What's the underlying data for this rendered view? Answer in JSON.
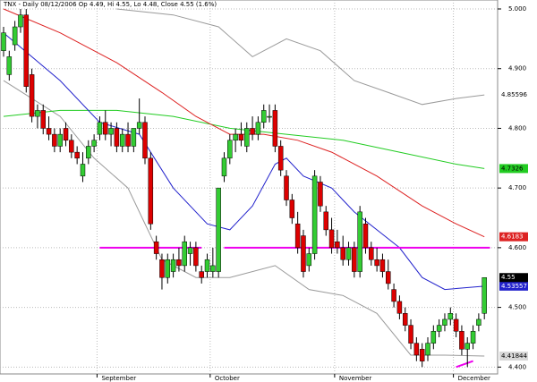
{
  "chart_data": {
    "type": "candlestick",
    "title": "TNX - Daily 08/12/2006 Op 4.49, Hi 4.55, Lo 4.48, Close 4.55 (1.6%)",
    "categories": [
      null,
      null,
      null,
      null,
      null,
      null,
      null,
      null,
      null,
      null,
      null,
      null,
      null,
      null,
      null,
      null,
      null,
      "September",
      null,
      null,
      null,
      null,
      null,
      null,
      null,
      null,
      null,
      null,
      null,
      null,
      null,
      null,
      null,
      null,
      null,
      null,
      null,
      "October",
      null,
      null,
      null,
      null,
      null,
      null,
      null,
      null,
      null,
      null,
      null,
      null,
      null,
      null,
      null,
      null,
      null,
      null,
      null,
      null,
      null,
      "November",
      null,
      null,
      null,
      null,
      null,
      null,
      null,
      null,
      null,
      null,
      null,
      null,
      null,
      null,
      null,
      null,
      null,
      null,
      null,
      null,
      "December",
      null,
      null,
      null,
      null,
      null
    ],
    "open": [
      4.93,
      4.89,
      4.94,
      4.97,
      4.99,
      4.89,
      4.82,
      4.83,
      4.8,
      4.79,
      4.77,
      4.8,
      4.78,
      4.76,
      4.72,
      4.75,
      4.77,
      4.79,
      4.81,
      4.79,
      4.8,
      4.77,
      4.79,
      4.77,
      4.8,
      4.81,
      4.75,
      4.61,
      4.58,
      4.55,
      4.56,
      4.58,
      4.57,
      4.59,
      4.6,
      4.56,
      4.56,
      4.56,
      4.56,
      4.72,
      4.75,
      4.78,
      4.79,
      4.77,
      4.8,
      4.79,
      4.81,
      4.82,
      4.83,
      4.77,
      4.72,
      4.68,
      4.64,
      4.62,
      4.57,
      4.59,
      4.71,
      4.66,
      4.63,
      4.61,
      4.6,
      4.58,
      4.6,
      4.56,
      4.64,
      4.6,
      4.58,
      4.58,
      4.56,
      4.53,
      4.51,
      4.49,
      4.47,
      4.44,
      4.43,
      4.42,
      4.44,
      4.46,
      4.47,
      4.48,
      4.48,
      4.46,
      4.43,
      4.44,
      4.47,
      4.49
    ],
    "high": [
      4.97,
      4.93,
      4.98,
      5.0,
      5.0,
      4.9,
      4.84,
      4.84,
      4.82,
      4.8,
      4.8,
      4.81,
      4.79,
      4.77,
      4.76,
      4.78,
      4.79,
      4.82,
      4.83,
      4.81,
      4.81,
      4.8,
      4.81,
      4.8,
      4.85,
      4.82,
      4.76,
      4.62,
      4.59,
      4.59,
      4.59,
      4.6,
      4.62,
      4.61,
      4.61,
      4.57,
      4.59,
      4.6,
      4.7,
      4.76,
      4.79,
      4.8,
      4.81,
      4.81,
      4.82,
      4.82,
      4.84,
      4.84,
      4.84,
      4.78,
      4.73,
      4.69,
      4.66,
      4.63,
      4.6,
      4.73,
      4.72,
      4.67,
      4.65,
      4.63,
      4.62,
      4.61,
      4.61,
      4.67,
      4.65,
      4.61,
      4.6,
      4.59,
      4.58,
      4.54,
      4.52,
      4.5,
      4.48,
      4.45,
      4.44,
      4.45,
      4.47,
      4.48,
      4.49,
      4.5,
      4.49,
      4.47,
      4.45,
      4.47,
      4.49,
      4.55
    ],
    "low": [
      4.92,
      4.88,
      4.93,
      4.96,
      4.86,
      4.81,
      4.8,
      4.79,
      4.78,
      4.76,
      4.76,
      4.77,
      4.75,
      4.74,
      4.71,
      4.74,
      4.76,
      4.78,
      4.78,
      4.77,
      4.76,
      4.76,
      4.76,
      4.76,
      4.79,
      4.74,
      4.63,
      4.58,
      4.53,
      4.54,
      4.55,
      4.56,
      4.56,
      4.57,
      4.56,
      4.54,
      4.55,
      4.55,
      4.55,
      4.71,
      4.74,
      4.76,
      4.77,
      4.76,
      4.78,
      4.78,
      4.8,
      4.81,
      4.76,
      4.72,
      4.67,
      4.64,
      4.59,
      4.55,
      4.56,
      4.58,
      4.66,
      4.62,
      4.59,
      4.59,
      4.57,
      4.57,
      4.55,
      4.55,
      4.59,
      4.57,
      4.56,
      4.55,
      4.53,
      4.5,
      4.48,
      4.46,
      4.43,
      4.41,
      4.4,
      4.41,
      4.43,
      4.45,
      4.46,
      4.47,
      4.45,
      4.42,
      4.4,
      4.43,
      4.46,
      4.48
    ],
    "close": [
      4.96,
      4.92,
      4.97,
      4.99,
      4.87,
      4.82,
      4.83,
      4.8,
      4.79,
      4.77,
      4.79,
      4.78,
      4.76,
      4.75,
      4.74,
      4.77,
      4.78,
      4.81,
      4.79,
      4.8,
      4.77,
      4.79,
      4.77,
      4.8,
      4.81,
      4.75,
      4.64,
      4.59,
      4.55,
      4.58,
      4.58,
      4.57,
      4.61,
      4.6,
      4.57,
      4.55,
      4.58,
      4.57,
      4.7,
      4.75,
      4.78,
      4.79,
      4.78,
      4.8,
      4.79,
      4.81,
      4.83,
      4.82,
      4.77,
      4.73,
      4.68,
      4.65,
      4.6,
      4.56,
      4.59,
      4.72,
      4.67,
      4.63,
      4.6,
      4.6,
      4.58,
      4.6,
      4.56,
      4.66,
      4.6,
      4.58,
      4.57,
      4.56,
      4.54,
      4.51,
      4.49,
      4.47,
      4.44,
      4.42,
      4.41,
      4.44,
      4.46,
      4.47,
      4.48,
      4.49,
      4.46,
      4.43,
      4.44,
      4.46,
      4.48,
      4.55
    ],
    "up_color": "#33cc33",
    "down_color": "#dd0000",
    "close_tag_color": "#000000",
    "overlays": [
      {
        "color": "#9a9a9a",
        "tag": true,
        "tag_fill": "#ffffff",
        "tag_text": "#000000",
        "x": [
          20,
          30,
          38,
          44,
          50,
          56,
          62,
          68,
          74,
          80,
          85
        ],
        "values": [
          5.0,
          4.99,
          4.97,
          4.92,
          4.95,
          4.93,
          4.88,
          4.86,
          4.84,
          4.85,
          4.85596
        ]
      },
      {
        "color": "#9a9a9a",
        "tag": true,
        "tag_fill": "#d8d8d8",
        "tag_text": "#000000",
        "x": [
          0,
          10,
          16,
          22,
          28,
          34,
          40,
          48,
          54,
          60,
          66,
          72,
          78,
          85
        ],
        "values": [
          4.88,
          4.82,
          4.75,
          4.7,
          4.58,
          4.55,
          4.55,
          4.57,
          4.53,
          4.52,
          4.49,
          4.42,
          4.42,
          4.41844
        ]
      },
      {
        "color": "#22cc22",
        "tag": true,
        "tag_fill": "#22cc22",
        "tag_text": "#000000",
        "x": [
          0,
          10,
          20,
          30,
          40,
          50,
          60,
          70,
          80,
          85
        ],
        "values": [
          4.82,
          4.83,
          4.83,
          4.82,
          4.8,
          4.79,
          4.78,
          4.76,
          4.74,
          4.7326
        ]
      },
      {
        "color": "#dd2222",
        "tag": true,
        "tag_fill": "#dd2222",
        "tag_text": "#ffffff",
        "x": [
          0,
          10,
          20,
          28,
          34,
          40,
          46,
          52,
          58,
          66,
          74,
          80,
          85
        ],
        "values": [
          5.0,
          4.96,
          4.91,
          4.86,
          4.82,
          4.79,
          4.79,
          4.78,
          4.76,
          4.72,
          4.67,
          4.64,
          4.6183
        ]
      },
      {
        "color": "#2222cc",
        "tag": true,
        "tag_fill": "#2222cc",
        "tag_text": "#ffffff",
        "x": [
          0,
          10,
          17,
          24,
          30,
          36,
          40,
          44,
          48,
          50,
          53,
          58,
          62,
          66,
          70,
          74,
          78,
          85
        ],
        "values": [
          4.96,
          4.88,
          4.81,
          4.79,
          4.7,
          4.64,
          4.63,
          4.67,
          4.74,
          4.75,
          4.72,
          4.7,
          4.66,
          4.63,
          4.6,
          4.55,
          4.53,
          4.53557
        ]
      },
      {
        "color": "#ee00ee",
        "tag": false,
        "x": [
          17,
          35
        ],
        "values": [
          4.6,
          4.6
        ]
      },
      {
        "color": "#ee00ee",
        "tag": false,
        "x": [
          39,
          86
        ],
        "values": [
          4.6,
          4.6
        ]
      },
      {
        "color": "#ee00ee",
        "tag": false,
        "x": [
          80,
          83
        ],
        "values": [
          4.4,
          4.41
        ]
      }
    ],
    "ylim": [
      4.375,
      5.015
    ],
    "yticks": [
      {
        "value": 4.4,
        "label": "4.400"
      },
      {
        "value": 4.5,
        "label": "4.500"
      },
      {
        "value": 4.6,
        "label": "4.600"
      },
      {
        "value": 4.7,
        "label": "4.700"
      },
      {
        "value": 4.8,
        "label": "4.800"
      },
      {
        "value": 4.9,
        "label": "4.900"
      },
      {
        "value": 5.0,
        "label": "5.000"
      }
    ],
    "grid": true
  }
}
